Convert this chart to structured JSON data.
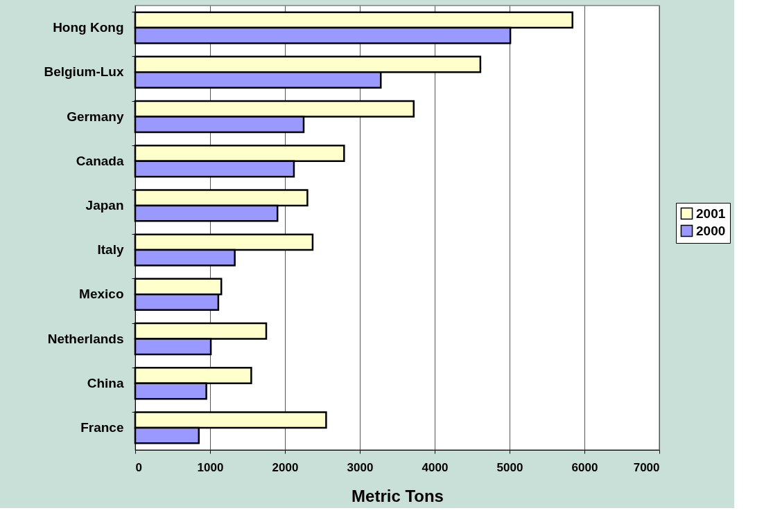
{
  "chart_data": {
    "type": "bar",
    "orientation": "horizontal",
    "xlabel": "Metric Tons",
    "categories": [
      "Hong Kong",
      "Belgium-Lux",
      "Germany",
      "Canada",
      "Japan",
      "Italy",
      "Mexico",
      "Netherlands",
      "China",
      "France"
    ],
    "series": [
      {
        "name": "2001",
        "color": "#ffffcc",
        "values": [
          5840,
          4610,
          3720,
          2790,
          2300,
          2370,
          1150,
          1750,
          1550,
          2550
        ]
      },
      {
        "name": "2000",
        "color": "#9999ff",
        "values": [
          5010,
          3280,
          2250,
          2120,
          1900,
          1330,
          1110,
          1010,
          950,
          850
        ]
      }
    ],
    "xlim": [
      0,
      7000
    ],
    "xticks": [
      0,
      1000,
      2000,
      3000,
      4000,
      5000,
      6000,
      7000
    ],
    "grid": "x",
    "legend": "right"
  }
}
